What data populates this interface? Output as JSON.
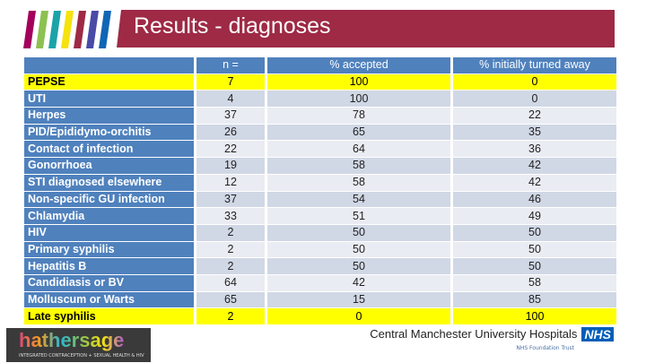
{
  "header": {
    "title": "Results - diagnoses",
    "stripe_colors": [
      "#a3005c",
      "#8cc152",
      "#1aa3a8",
      "#f5e20e",
      "#9e2a45",
      "#4a4aa8",
      "#1065b5"
    ]
  },
  "colors": {
    "header_bg": "#4f81bd",
    "highlight": "#ffff00",
    "banner": "#9e2a45"
  },
  "table": {
    "columns": [
      "",
      "n =",
      "% accepted",
      "% initially turned away"
    ],
    "rows": [
      {
        "label": "PEPSE",
        "n": "7",
        "accepted": "100",
        "turned_away": "0",
        "highlight": true
      },
      {
        "label": "UTI",
        "n": "4",
        "accepted": "100",
        "turned_away": "0"
      },
      {
        "label": "Herpes",
        "n": "37",
        "accepted": "78",
        "turned_away": "22"
      },
      {
        "label": "PID/Epididymo-orchitis",
        "n": "26",
        "accepted": "65",
        "turned_away": "35"
      },
      {
        "label": "Contact of infection",
        "n": "22",
        "accepted": "64",
        "turned_away": "36"
      },
      {
        "label": "Gonorrhoea",
        "n": "19",
        "accepted": "58",
        "turned_away": "42"
      },
      {
        "label": "STI diagnosed elsewhere",
        "n": "12",
        "accepted": "58",
        "turned_away": "42"
      },
      {
        "label": "Non-specific GU infection",
        "n": "37",
        "accepted": "54",
        "turned_away": "46"
      },
      {
        "label": "Chlamydia",
        "n": "33",
        "accepted": "51",
        "turned_away": "49"
      },
      {
        "label": "HIV",
        "n": "2",
        "accepted": "50",
        "turned_away": "50"
      },
      {
        "label": "Primary syphilis",
        "n": "2",
        "accepted": "50",
        "turned_away": "50"
      },
      {
        "label": "Hepatitis B",
        "n": "2",
        "accepted": "50",
        "turned_away": "50"
      },
      {
        "label": "Candidiasis or BV",
        "n": "64",
        "accepted": "42",
        "turned_away": "58"
      },
      {
        "label": "Molluscum or Warts",
        "n": "65",
        "accepted": "15",
        "turned_away": "85"
      },
      {
        "label": "Late syphilis",
        "n": "2",
        "accepted": "0",
        "turned_away": "100",
        "highlight": true
      }
    ]
  },
  "footer": {
    "logo_word": "hathersage",
    "logo_tagline": "INTEGRATED CONTRACEPTION + SEXUAL HEALTH & HIV",
    "trust_name": "Central Manchester University Hospitals",
    "nhs": "NHS",
    "foundation": "NHS Foundation Trust"
  }
}
